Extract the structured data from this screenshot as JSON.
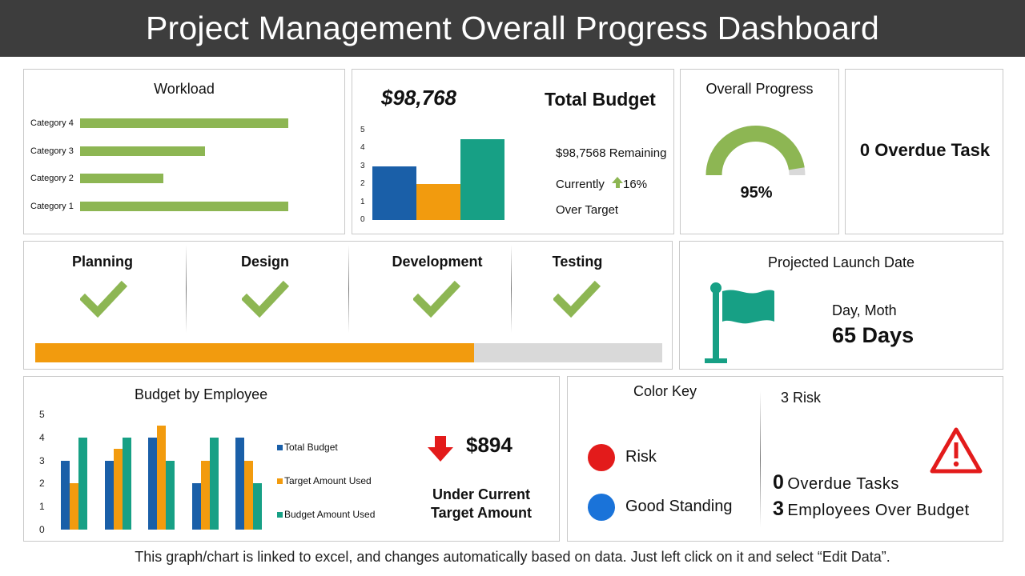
{
  "page": {
    "title": "Project Management Overall Progress Dashboard",
    "footnote": "This graph/chart is linked to excel, and changes automatically based on data. Just left click on it and select “Edit Data”."
  },
  "workload": {
    "title": "Workload",
    "chart_data": {
      "type": "bar",
      "orientation": "horizontal",
      "categories": [
        "Category 4",
        "Category 3",
        "Category 2",
        "Category 1"
      ],
      "values": [
        5,
        3,
        2,
        5
      ],
      "color": "#8db653"
    }
  },
  "budget": {
    "amount": "$98,768",
    "title": "Total Budget",
    "remaining": "$98,7568 Remaining",
    "currently_label": "Currently",
    "change": "16%",
    "over_target": "Over Target",
    "chart_data": {
      "type": "bar",
      "values": [
        3,
        2,
        4.5
      ],
      "colors": [
        "#1a5fa8",
        "#f29b0e",
        "#17a085"
      ],
      "yticks": [
        "5",
        "4",
        "3",
        "2",
        "1",
        "0"
      ],
      "ylim": [
        0,
        5
      ]
    }
  },
  "overall_progress": {
    "title": "Overall Progress",
    "value_label": "95%",
    "value": 0.95,
    "fill_color": "#8db653",
    "track_color": "#d9d9d9"
  },
  "overdue": {
    "label": "0 Overdue Task"
  },
  "phases": {
    "items": [
      {
        "name": "Planning"
      },
      {
        "name": "Design"
      },
      {
        "name": "Development"
      },
      {
        "name": "Testing"
      }
    ],
    "check_color": "#8db653",
    "progress": 0.7,
    "progress_color": "#f29b0e",
    "track_color": "#d9d9d9"
  },
  "launch": {
    "title": "Projected Launch Date",
    "day_label": "Day, Moth",
    "days": "65 Days",
    "icon": "flag-icon",
    "icon_color": "#17a085"
  },
  "employee_budget": {
    "title": "Budget by Employee",
    "amount": "$894",
    "under_line1": "Under Current",
    "under_line2": "Target Amount",
    "arrow_icon": "down-arrow-icon",
    "arrow_color": "#e31b1b",
    "chart_data": {
      "type": "bar",
      "groups": 5,
      "series": [
        {
          "name": "Total Budget",
          "color": "#1a5fa8",
          "values": [
            3,
            3,
            4,
            2,
            4
          ]
        },
        {
          "name": "Target Amount Used",
          "color": "#f29b0e",
          "values": [
            2,
            3.5,
            4.5,
            3,
            3
          ]
        },
        {
          "name": "Budget Amount Used",
          "color": "#17a085",
          "values": [
            4,
            4,
            3,
            4,
            2
          ]
        }
      ],
      "yticks": [
        "5",
        "4",
        "3",
        "2",
        "1",
        "0"
      ],
      "ylim": [
        0,
        5
      ]
    }
  },
  "color_key": {
    "title": "Color Key",
    "risk_label": "Risk",
    "risk_color": "#e31b1b",
    "good_label": "Good Standing",
    "good_color": "#1a73d9",
    "risk_count_label": "3 Risk",
    "overdue_count": "0",
    "overdue_label": "Overdue Tasks",
    "employees_count": "3",
    "employees_label": "Employees Over Budget",
    "warning_icon": "warning-icon"
  }
}
